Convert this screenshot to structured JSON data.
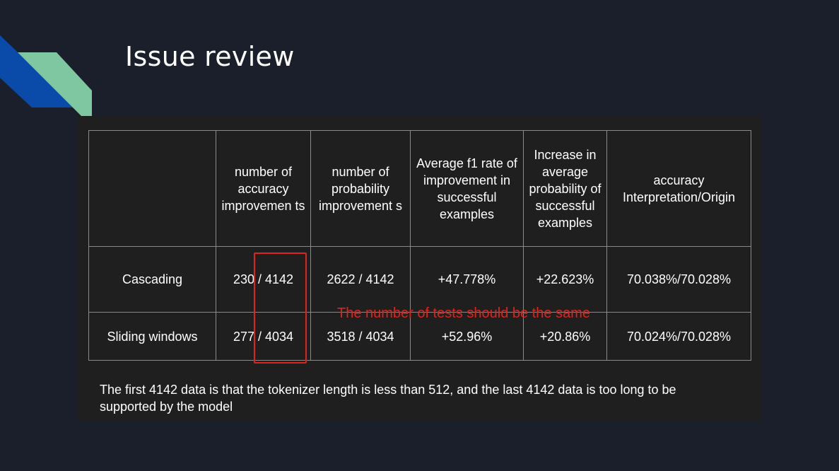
{
  "slide": {
    "title": "Issue review",
    "colors": {
      "background": "#1a1f2b",
      "accent_blue": "#0a4aa8",
      "accent_green": "#7fc7a0",
      "annotation": "#e0241c"
    }
  },
  "table": {
    "headers": [
      "",
      "number of accuracy improvemen ts",
      "number of probability improvement s",
      "Average f1 rate of improvement in successful examples",
      "Increase in average probability of successful examples",
      "accuracy Interpretation/Origin"
    ],
    "rows": [
      [
        "Cascading",
        "230 / 4142",
        "2622 / 4142",
        "+47.778%",
        "+22.623%",
        "70.038%/70.028%"
      ],
      [
        "Sliding windows",
        "277 / 4034",
        "3518 / 4034",
        "+52.96%",
        "+20.86%",
        "70.024%/70.028%"
      ]
    ]
  },
  "annotation": {
    "text": "The number of tests should be the same"
  },
  "footnote": "The first 4142 data is that the tokenizer length is less than 512, and the last 4142 data is too long to be supported by the model"
}
